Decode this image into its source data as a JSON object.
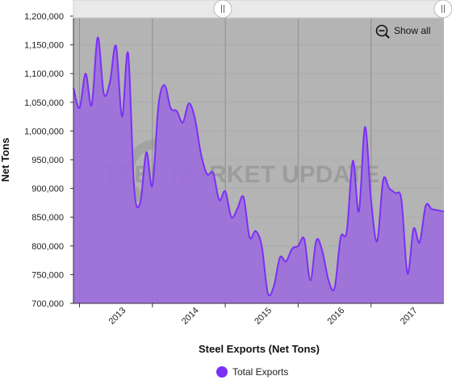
{
  "chart_data": {
    "type": "area",
    "title": "",
    "xlabel": "Steel Exports (Net Tons)",
    "ylabel": "Net Tons",
    "ylim": [
      700000,
      1200000
    ],
    "yticks": [
      "700,000",
      "750,000",
      "800,000",
      "850,000",
      "900,000",
      "950,000",
      "1,000,000",
      "1,050,000",
      "1,100,000",
      "1,150,000",
      "1,200,000"
    ],
    "xticks": [
      "2013",
      "2014",
      "2015",
      "2016",
      "2017"
    ],
    "grid": true,
    "legend_position": "bottom",
    "series": [
      {
        "name": "Total Exports",
        "color": "#7b2ff7",
        "x": [
          "2012-12",
          "2013-01",
          "2013-02",
          "2013-03",
          "2013-04",
          "2013-05",
          "2013-06",
          "2013-07",
          "2013-08",
          "2013-09",
          "2013-10",
          "2013-11",
          "2013-12",
          "2014-01",
          "2014-02",
          "2014-03",
          "2014-04",
          "2014-05",
          "2014-06",
          "2014-07",
          "2014-08",
          "2014-09",
          "2014-10",
          "2014-11",
          "2014-12",
          "2015-01",
          "2015-02",
          "2015-03",
          "2015-04",
          "2015-05",
          "2015-06",
          "2015-07",
          "2015-08",
          "2015-09",
          "2015-10",
          "2015-11",
          "2015-12",
          "2016-01",
          "2016-02",
          "2016-03",
          "2016-04",
          "2016-05",
          "2016-06",
          "2016-07",
          "2016-08",
          "2016-09",
          "2016-10",
          "2016-11",
          "2016-12",
          "2017-01",
          "2017-02",
          "2017-03",
          "2017-04",
          "2017-05",
          "2017-06",
          "2017-07",
          "2017-08",
          "2017-09",
          "2017-10",
          "2017-11",
          "2017-12",
          "2018-01"
        ],
        "values": [
          1075000,
          1040000,
          1100000,
          1045000,
          1163000,
          1065000,
          1085000,
          1148000,
          1025000,
          1135000,
          900000,
          875000,
          963000,
          905000,
          1045000,
          1080000,
          1040000,
          1035000,
          1015000,
          1048000,
          1022000,
          960000,
          925000,
          927000,
          880000,
          895000,
          850000,
          865000,
          885000,
          815000,
          826000,
          800000,
          718000,
          730000,
          780000,
          773000,
          795000,
          800000,
          812000,
          740000,
          810000,
          790000,
          740000,
          727000,
          815000,
          825000,
          948000,
          860000,
          1007000,
          880000,
          808000,
          915000,
          900000,
          892000,
          880000,
          752000,
          830000,
          806000,
          870000,
          864000,
          862000,
          860000
        ]
      }
    ]
  },
  "toolbar": {
    "show_all_label": "Show all",
    "zoom_icon": "zoom-out-icon"
  },
  "watermark": {
    "text": "STEEL MARKET UPDATE"
  }
}
